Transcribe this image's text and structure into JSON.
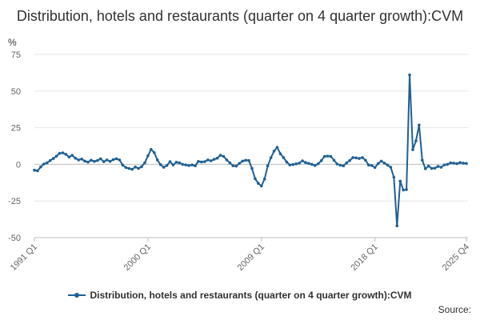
{
  "chart_data": {
    "type": "line",
    "title": "Distribution, hotels and restaurants (quarter on 4 quarter growth):CVM",
    "unit_label": "%",
    "ylim": [
      -50,
      75
    ],
    "y_ticks": [
      "75",
      "50",
      "25",
      "0",
      "-25",
      "-50"
    ],
    "x_tick_labels": [
      "1991 Q1",
      "2000 Q1",
      "2009 Q1",
      "2018 Q1",
      "2025 Q4"
    ],
    "grid": true,
    "legend_position": "bottom",
    "series": [
      {
        "name": "Distribution, hotels and restaurants (quarter on 4 quarter growth):CVM",
        "color": "#206095",
        "values": [
          -4.0,
          -4.4,
          -1.8,
          0.2,
          1.0,
          2.6,
          4.0,
          5.6,
          7.5,
          7.8,
          6.8,
          5.0,
          6.1,
          4.2,
          3.0,
          3.6,
          2.2,
          1.5,
          2.8,
          2.0,
          2.6,
          3.8,
          1.8,
          3.0,
          2.0,
          3.2,
          3.8,
          3.0,
          -0.5,
          -2.2,
          -2.8,
          -3.4,
          -1.8,
          -2.8,
          -1.6,
          1.0,
          5.8,
          10.2,
          8.0,
          3.0,
          -0.2,
          -2.0,
          -0.8,
          1.8,
          -0.4,
          1.4,
          1.0,
          0.0,
          -0.4,
          -0.8,
          -0.4,
          -1.0,
          2.0,
          1.6,
          1.8,
          3.0,
          2.4,
          3.4,
          4.2,
          6.2,
          5.4,
          3.0,
          1.0,
          -1.0,
          -1.2,
          0.6,
          2.2,
          2.8,
          2.6,
          -2.8,
          -9.8,
          -13.0,
          -14.8,
          -10.0,
          -1.0,
          4.5,
          9.0,
          11.6,
          7.2,
          4.6,
          1.6,
          -0.4,
          -0.2,
          0.3,
          0.8,
          2.4,
          1.2,
          0.6,
          0.0,
          -0.8,
          0.4,
          2.5,
          5.4,
          5.6,
          5.4,
          2.8,
          0.2,
          -0.6,
          -1.0,
          1.0,
          2.6,
          4.6,
          4.4,
          4.0,
          4.6,
          2.8,
          -0.5,
          -0.8,
          -2.2,
          0.5,
          2.2,
          0.8,
          -0.5,
          -2.0,
          -8.8,
          -42.0,
          -11.5,
          -17.5,
          -17.2,
          61.0,
          10.0,
          16.0,
          26.8,
          2.8,
          -3.0,
          -1.2,
          -2.8,
          -2.6,
          -1.4,
          -2.0,
          -0.4,
          0.0,
          1.0,
          0.8,
          0.4,
          1.2,
          0.8,
          0.6
        ]
      }
    ]
  },
  "legend": {
    "label": "Distribution, hotels and restaurants (quarter on 4 quarter growth):CVM"
  },
  "source_label": "Source:"
}
